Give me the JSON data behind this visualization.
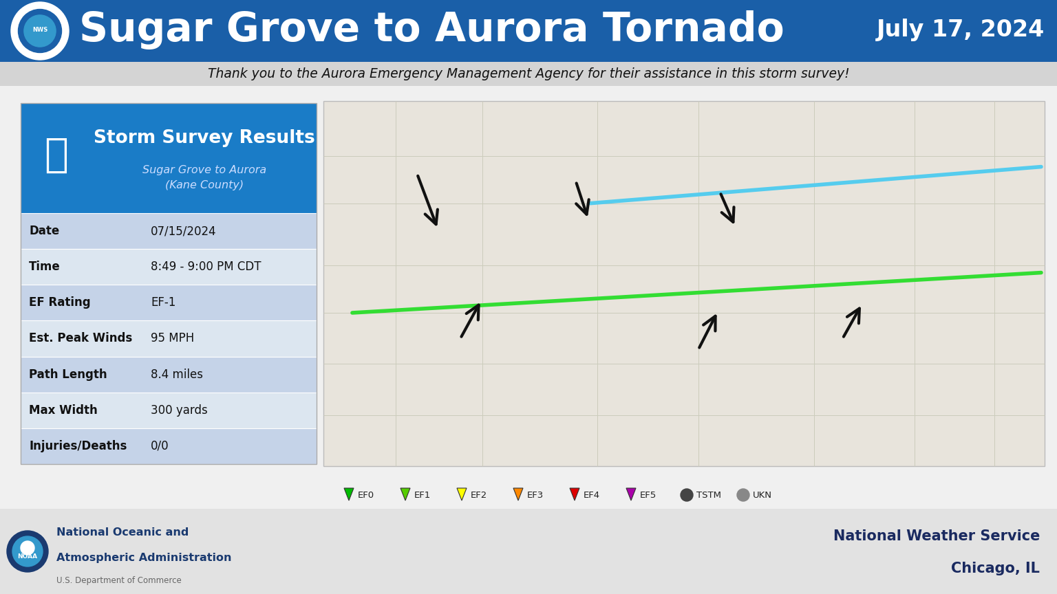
{
  "title": "Sugar Grove to Aurora Tornado",
  "date_label": "July 17, 2024",
  "subtitle": "Thank you to the Aurora Emergency Management Agency for their assistance in this storm survey!",
  "header_bg": "#1a5fa8",
  "header_text_color": "#ffffff",
  "subtitle_bg": "#d4d4d4",
  "subtitle_text_color": "#111111",
  "table_header_bg": "#1a7cc7",
  "table_header_text": "Storm Survey Results",
  "table_subheader": "Sugar Grove to Aurora\n(Kane County)",
  "table_rows": [
    [
      "Date",
      "07/15/2024"
    ],
    [
      "Time",
      "8:49 - 9:00 PM CDT"
    ],
    [
      "EF Rating",
      "EF-1"
    ],
    [
      "Est. Peak Winds",
      "95 MPH"
    ],
    [
      "Path Length",
      "8.4 miles"
    ],
    [
      "Max Width",
      "300 yards"
    ],
    [
      "Injuries/Deaths",
      "0/0"
    ]
  ],
  "row_colors": [
    "#c5d3e8",
    "#dce6f0",
    "#c5d3e8",
    "#dce6f0",
    "#c5d3e8",
    "#dce6f0",
    "#c5d3e8"
  ],
  "footer_bg": "#e2e2e2",
  "footer_left_line1": "National Oceanic and",
  "footer_left_line2": "Atmospheric Administration",
  "footer_left_line3": "U.S. Department of Commerce",
  "footer_right_line1": "National Weather Service",
  "footer_right_line2": "Chicago, IL",
  "legend_items": [
    {
      "label": "EF0",
      "color": "#00bb00"
    },
    {
      "label": "EF1",
      "color": "#55cc00"
    },
    {
      "label": "EF2",
      "color": "#ffff00"
    },
    {
      "label": "EF3",
      "color": "#ff8800"
    },
    {
      "label": "EF4",
      "color": "#dd0000"
    },
    {
      "label": "EF5",
      "color": "#aa00aa"
    },
    {
      "label": "TSTM",
      "color": "#444444"
    },
    {
      "label": "UKN",
      "color": "#888888"
    }
  ],
  "map_bg": "#e8e4dc",
  "tornado_path_color": "#33dd33",
  "second_path_color": "#55ccee",
  "arrow_color": "#111111",
  "bg_color": "#f0f0f0"
}
